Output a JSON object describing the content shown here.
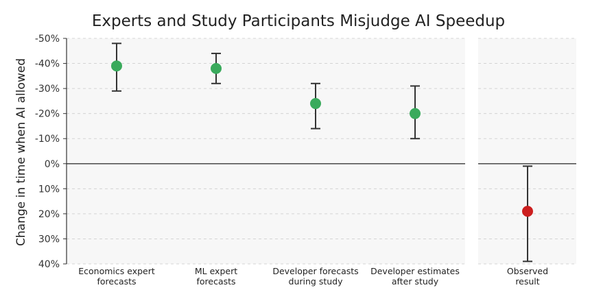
{
  "chart_data": {
    "type": "scatter",
    "title": "Experts and Study Participants Misjudge AI Speedup",
    "ylabel": "Change in time when AI allowed",
    "xlabel": "",
    "y_unit": "%",
    "ylim": [
      -50,
      40
    ],
    "y_inverted": true,
    "y_ticks": [
      -50,
      -40,
      -30,
      -20,
      -10,
      0,
      10,
      20,
      30,
      40
    ],
    "y_tick_labels": [
      "-50%",
      "-40%",
      "-30%",
      "-20%",
      "-10%",
      "0%",
      "10%",
      "20%",
      "30%",
      "40%"
    ],
    "grid": true,
    "panels": [
      {
        "name": "forecasts",
        "categories": [
          [
            "Economics expert",
            "forecasts"
          ],
          [
            "ML expert",
            "forecasts"
          ],
          [
            "Developer forecasts",
            "during study"
          ],
          [
            "Developer estimates",
            "after study"
          ]
        ],
        "points": [
          {
            "y": -39,
            "lower": -48,
            "upper": -29,
            "color": "#3aaa5c"
          },
          {
            "y": -38,
            "lower": -44,
            "upper": -32,
            "color": "#3aaa5c"
          },
          {
            "y": -24,
            "lower": -32,
            "upper": -14,
            "color": "#3aaa5c"
          },
          {
            "y": -20,
            "lower": -31,
            "upper": -10,
            "color": "#3aaa5c"
          }
        ]
      },
      {
        "name": "observed",
        "categories": [
          [
            "Observed",
            "result"
          ]
        ],
        "points": [
          {
            "y": 19,
            "lower": 1,
            "upper": 39,
            "color": "#cc1f1f"
          }
        ]
      }
    ],
    "colors": {
      "forecast_point": "#3aaa5c",
      "observed_point": "#cc1f1f",
      "error_bar": "#333333",
      "panel_background": "#f7f7f7",
      "grid": "#d4d4d4"
    }
  }
}
